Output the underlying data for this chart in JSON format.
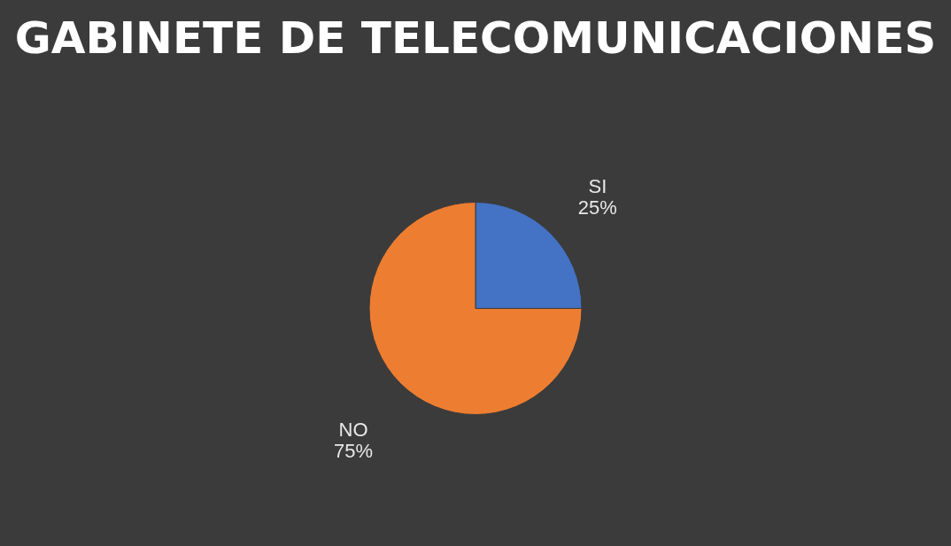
{
  "chart_data": {
    "type": "pie",
    "title": "GABINETE DE TELECOMUNICACIONES",
    "categories": [
      "SI",
      "NO"
    ],
    "values": [
      25,
      75
    ],
    "value_labels": [
      "25%",
      "75%"
    ],
    "colors": [
      "#4472c4",
      "#ed7d31"
    ]
  }
}
